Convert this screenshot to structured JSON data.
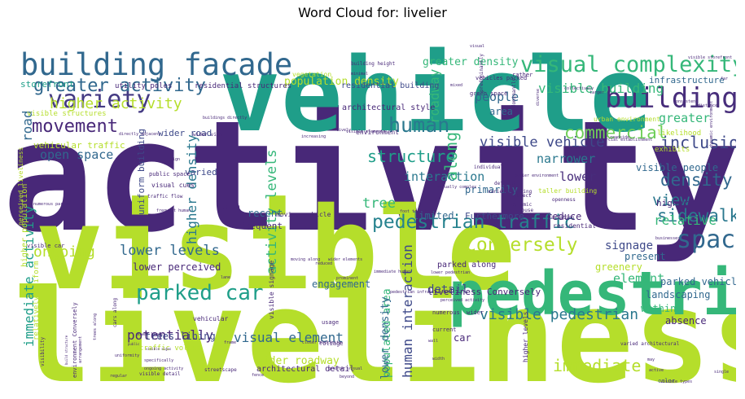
{
  "title": "Word Cloud for: livelier",
  "chart_data": {
    "type": "wordcloud",
    "words": [
      {
        "text": "activity",
        "weight": 100,
        "color": "#482878"
      },
      {
        "text": "liveliness",
        "weight": 88,
        "color": "#b5de2b"
      },
      {
        "text": "visible",
        "weight": 80,
        "color": "#b5de2b"
      },
      {
        "text": "vehicle",
        "weight": 72,
        "color": "#1f9e89"
      },
      {
        "text": "pedestrian",
        "weight": 46,
        "color": "#35b779"
      },
      {
        "text": "building facade",
        "weight": 28,
        "color": "#31688e"
      },
      {
        "text": "variety",
        "weight": 25,
        "color": "#443a83"
      },
      {
        "text": "building",
        "weight": 25,
        "color": "#472d7b"
      },
      {
        "text": "visual complexity",
        "weight": 22,
        "color": "#35b779"
      },
      {
        "text": "space",
        "weight": 21,
        "color": "#31688e"
      },
      {
        "text": "pedestrian traffic",
        "weight": 19,
        "color": "#26828e"
      },
      {
        "text": "parked car",
        "weight": 19,
        "color": "#1f9e89"
      },
      {
        "text": "greater activity",
        "weight": 19,
        "color": "#31688e"
      },
      {
        "text": "human",
        "weight": 19,
        "color": "#2a788e"
      },
      {
        "text": "Conversely",
        "weight": 17,
        "color": "#b5de2b"
      },
      {
        "text": "movement",
        "weight": 17,
        "color": "#482878"
      },
      {
        "text": "density",
        "weight": 16,
        "color": "#31688e"
      },
      {
        "text": "commercial",
        "weight": 16,
        "color": "#6ece58"
      },
      {
        "text": "sidewalk",
        "weight": 16,
        "color": "#2a788e"
      },
      {
        "text": "along",
        "weight": 16,
        "color": "#35b779"
      },
      {
        "text": "structure",
        "weight": 16,
        "color": "#1f9e89"
      },
      {
        "text": "inclusion",
        "weight": 15,
        "color": "#3e4989"
      },
      {
        "text": "visible pedestrian",
        "weight": 15,
        "color": "#2a788e"
      },
      {
        "text": "immediate",
        "weight": 15,
        "color": "#b5de2b"
      },
      {
        "text": "view",
        "weight": 15,
        "color": "#2a788e"
      },
      {
        "text": "higher activity",
        "weight": 14,
        "color": "#b5de2b"
      },
      {
        "text": "ongoing",
        "weight": 14,
        "color": "#b5de2b"
      },
      {
        "text": "visible vehicle",
        "weight": 14,
        "color": "#3e4989"
      },
      {
        "text": "open space",
        "weight": 12,
        "color": "#31688e"
      },
      {
        "text": "activity levels",
        "weight": 13,
        "color": "#35b779"
      },
      {
        "text": "higher density",
        "weight": 13,
        "color": "#2a788e"
      },
      {
        "text": "lower levels",
        "weight": 13,
        "color": "#31688e"
      },
      {
        "text": "visible building",
        "weight": 12,
        "color": "#35b779"
      },
      {
        "text": "roadway",
        "weight": 12,
        "color": "#35b779"
      },
      {
        "text": "people",
        "weight": 12,
        "color": "#31688e"
      },
      {
        "text": "road",
        "weight": 12,
        "color": "#31688e"
      },
      {
        "text": "tree",
        "weight": 12,
        "color": "#35b779"
      },
      {
        "text": "relative",
        "weight": 12,
        "color": "#35b779"
      },
      {
        "text": "greater",
        "weight": 12,
        "color": "#35b779"
      },
      {
        "text": "immediate activity",
        "weight": 12,
        "color": "#1f9e89"
      },
      {
        "text": "potentially",
        "weight": 12,
        "color": "#482878"
      },
      {
        "text": "visual element",
        "weight": 12,
        "color": "#31688e"
      },
      {
        "text": "interaction",
        "weight": 11,
        "color": "#2a788e"
      },
      {
        "text": "human interaction",
        "weight": 11,
        "color": "#3e4989"
      },
      {
        "text": "lower",
        "weight": 11,
        "color": "#472d7b"
      },
      {
        "text": "narrower",
        "weight": 11,
        "color": "#2a788e"
      },
      {
        "text": "signage",
        "weight": 11,
        "color": "#3e4989"
      },
      {
        "text": "element",
        "weight": 11,
        "color": "#35b779"
      },
      {
        "text": "detail",
        "weight": 10,
        "color": "#3e4989"
      },
      {
        "text": "populated area",
        "weight": 10,
        "color": "#35b779"
      },
      {
        "text": "lower density",
        "weight": 10,
        "color": "#31688e"
      },
      {
        "text": "wider roadway",
        "weight": 10,
        "color": "#b5de2b"
      },
      {
        "text": "population density",
        "weight": 10,
        "color": "#b5de2b"
      },
      {
        "text": "greater density",
        "weight": 10,
        "color": "#35b779"
      },
      {
        "text": "infrastructure",
        "weight": 9,
        "color": "#31688e"
      },
      {
        "text": "visible people",
        "weight": 9,
        "color": "#31688e"
      },
      {
        "text": "parked vehicle",
        "weight": 9,
        "color": "#31688e"
      },
      {
        "text": "landscaping",
        "weight": 9,
        "color": "#31688e"
      },
      {
        "text": "primarily",
        "weight": 9,
        "color": "#31688e"
      },
      {
        "text": "limited",
        "weight": 9,
        "color": "#31688e"
      },
      {
        "text": "reduce",
        "weight": 9,
        "color": "#482878"
      },
      {
        "text": "engagement",
        "weight": 9,
        "color": "#31688e"
      },
      {
        "text": "higher",
        "weight": 8,
        "color": "#482878"
      },
      {
        "text": "recent",
        "weight": 8,
        "color": "#31688e"
      },
      {
        "text": "present",
        "weight": 8,
        "color": "#31688e"
      },
      {
        "text": "greenery",
        "weight": 8,
        "color": "#b5de2b"
      },
      {
        "text": "within",
        "weight": 8,
        "color": "#35b779"
      },
      {
        "text": "absence",
        "weight": 8,
        "color": "#482878"
      },
      {
        "text": "area",
        "weight": 8,
        "color": "#31688e"
      },
      {
        "text": "varied",
        "weight": 7,
        "color": "#3e4989"
      },
      {
        "text": "frequent",
        "weight": 7,
        "color": "#482878"
      },
      {
        "text": "car",
        "weight": 8,
        "color": "#482878"
      },
      {
        "text": "lower perceived",
        "weight": 8,
        "color": "#482878"
      },
      {
        "text": "liveliness Conversely",
        "weight": 8,
        "color": "#482878"
      },
      {
        "text": "storefront",
        "weight": 8,
        "color": "#1f9e89"
      },
      {
        "text": "wider road",
        "weight": 7,
        "color": "#3e4989"
      },
      {
        "text": "trees lining",
        "weight": 8,
        "color": "#3e4989"
      },
      {
        "text": "architectural detail",
        "weight": 7,
        "color": "#482878"
      },
      {
        "text": "architectural style",
        "weight": 7,
        "color": "#482878"
      },
      {
        "text": "residential building",
        "weight": 7,
        "color": "#3e4989"
      },
      {
        "text": "residential structures",
        "weight": 6,
        "color": "#482878"
      },
      {
        "text": "utility poles",
        "weight": 6,
        "color": "#482878"
      },
      {
        "text": "vehicular traffic",
        "weight": 7,
        "color": "#b5de2b"
      },
      {
        "text": "visible structures",
        "weight": 6,
        "color": "#b5de2b"
      },
      {
        "text": "uniform building",
        "weight": 7,
        "color": "#3e4989"
      },
      {
        "text": "traffic volume",
        "weight": 6,
        "color": "#b5de2b"
      },
      {
        "text": "vegetation",
        "weight": 5,
        "color": "#b5de2b"
      },
      {
        "text": "environment",
        "weight": 5,
        "color": "#482878"
      },
      {
        "text": "likelihood",
        "weight": 6,
        "color": "#b5de2b"
      },
      {
        "text": "exhibits",
        "weight": 6,
        "color": "#b5de2b"
      },
      {
        "text": "urban environment",
        "weight": 5,
        "color": "#b5de2b"
      },
      {
        "text": "moving vehicle",
        "weight": 5,
        "color": "#482878"
      },
      {
        "text": "taller building",
        "weight": 5,
        "color": "#b5de2b"
      },
      {
        "text": "residential area",
        "weight": 5,
        "color": "#482878"
      },
      {
        "text": "Furthermore",
        "weight": 6,
        "color": "#3e4989"
      },
      {
        "text": "vehicular",
        "weight": 5,
        "color": "#482878"
      },
      {
        "text": "visual cues",
        "weight": 5,
        "color": "#482878"
      },
      {
        "text": "public space",
        "weight": 5,
        "color": "#482878"
      },
      {
        "text": "higher population",
        "weight": 6,
        "color": "#b5de2b"
      },
      {
        "text": "perceived liveliness",
        "weight": 5,
        "color": "#b5de2b"
      },
      {
        "text": "visible car",
        "weight": 5,
        "color": "#482878"
      },
      {
        "text": "relatively uniform",
        "weight": 6,
        "color": "#b5de2b"
      },
      {
        "text": "environment Conversely",
        "weight": 5,
        "color": "#482878"
      },
      {
        "text": "numerous",
        "weight": 5,
        "color": "#482878"
      },
      {
        "text": "wider",
        "weight": 5,
        "color": "#482878"
      },
      {
        "text": "current",
        "weight": 5,
        "color": "#482878"
      },
      {
        "text": "usage",
        "weight": 5,
        "color": "#482878"
      },
      {
        "text": "foliage",
        "weight": 5,
        "color": "#482878"
      },
      {
        "text": "visible signage",
        "weight": 5,
        "color": "#482878"
      },
      {
        "text": "higher levels",
        "weight": 5,
        "color": "#482878"
      },
      {
        "text": "varied architectural",
        "weight": 4,
        "color": "#482878"
      },
      {
        "text": "visible detail",
        "weight": 4,
        "color": "#482878"
      },
      {
        "text": "streetscape",
        "weight": 4,
        "color": "#482878"
      },
      {
        "text": "color",
        "weight": 5,
        "color": "#3e4989"
      },
      {
        "text": "visibility",
        "weight": 5,
        "color": "#482878"
      },
      {
        "text": "predominantly",
        "weight": 4,
        "color": "#482878"
      },
      {
        "text": "green space",
        "weight": 5,
        "color": "#482878"
      },
      {
        "text": "vehicles parked",
        "weight": 5,
        "color": "#482878"
      },
      {
        "text": "building height",
        "weight": 4,
        "color": "#482878"
      },
      {
        "text": "visible storefront",
        "weight": 4,
        "color": "#482878"
      },
      {
        "text": "rather",
        "weight": 5,
        "color": "#482878"
      },
      {
        "text": "visual",
        "weight": 4,
        "color": "#482878"
      },
      {
        "text": "collectively",
        "weight": 4,
        "color": "#482878"
      },
      {
        "text": "larger",
        "weight": 4,
        "color": "#482878"
      },
      {
        "text": "commercial establishment",
        "weight": 4,
        "color": "#482878"
      },
      {
        "text": "distance",
        "weight": 4,
        "color": "#482878"
      },
      {
        "text": "dynamic environment",
        "weight": 4,
        "color": "#482878"
      },
      {
        "text": "consistent",
        "weight": 4,
        "color": "#482878"
      },
      {
        "text": "openness",
        "weight": 4,
        "color": "#482878"
      },
      {
        "text": "variation",
        "weight": 4,
        "color": "#482878"
      },
      {
        "text": "house",
        "weight": 4,
        "color": "#482878"
      },
      {
        "text": "object",
        "weight": 4,
        "color": "#482878"
      },
      {
        "text": "dynamic",
        "weight": 4,
        "color": "#482878"
      },
      {
        "text": "individual",
        "weight": 4,
        "color": "#482878"
      },
      {
        "text": "defined",
        "weight": 4,
        "color": "#482878"
      },
      {
        "text": "varied building",
        "weight": 4,
        "color": "#482878"
      },
      {
        "text": "busier environment",
        "weight": 4,
        "color": "#482878"
      },
      {
        "text": "increasing",
        "weight": 4,
        "color": "#482878"
      },
      {
        "text": "directly adjacent",
        "weight": 4,
        "color": "#482878"
      },
      {
        "text": "numerous parked",
        "weight": 4,
        "color": "#482878"
      },
      {
        "text": "traffic flow",
        "weight": 4,
        "color": "#482878"
      },
      {
        "text": "linked",
        "weight": 4,
        "color": "#482878"
      },
      {
        "text": "cars along",
        "weight": 4,
        "color": "#482878"
      },
      {
        "text": "trees along",
        "weight": 4,
        "color": "#482878"
      },
      {
        "text": "power lines",
        "weight": 4,
        "color": "#482878"
      },
      {
        "text": "regular",
        "weight": 4,
        "color": "#482878"
      },
      {
        "text": "specifically",
        "weight": 4,
        "color": "#482878"
      },
      {
        "text": "ongoing activity",
        "weight": 4,
        "color": "#482878"
      },
      {
        "text": "beyond",
        "weight": 4,
        "color": "#482878"
      },
      {
        "text": "frame",
        "weight": 4,
        "color": "#482878"
      },
      {
        "text": "single",
        "weight": 4,
        "color": "#482878"
      },
      {
        "text": "active",
        "weight": 4,
        "color": "#482878"
      },
      {
        "text": "visible types",
        "weight": 4,
        "color": "#482878"
      },
      {
        "text": "parked along",
        "weight": 5,
        "color": "#482878"
      },
      {
        "text": "pedestrian infrastructure",
        "weight": 4,
        "color": "#482878"
      },
      {
        "text": "perceived activity",
        "weight": 4,
        "color": "#482878"
      },
      {
        "text": "mixed",
        "weight": 4,
        "color": "#482878"
      },
      {
        "text": "minimal",
        "weight": 4,
        "color": "#482878"
      },
      {
        "text": "diverse",
        "weight": 4,
        "color": "#482878"
      },
      {
        "text": "lively",
        "weight": 4,
        "color": "#482878"
      },
      {
        "text": "roadside",
        "weight": 4,
        "color": "#482878"
      },
      {
        "text": "wall",
        "weight": 4,
        "color": "#482878"
      },
      {
        "text": "businesses",
        "weight": 4,
        "color": "#482878"
      },
      {
        "text": "width",
        "weight": 4,
        "color": "#482878"
      },
      {
        "text": "uniformity",
        "weight": 4,
        "color": "#482878"
      },
      {
        "text": "lane",
        "weight": 4,
        "color": "#482878"
      },
      {
        "text": "fence",
        "weight": 4,
        "color": "#482878"
      },
      {
        "text": "sign",
        "weight": 4,
        "color": "#482878"
      },
      {
        "text": "prominent",
        "weight": 4,
        "color": "#482878"
      },
      {
        "text": "reduced",
        "weight": 4,
        "color": "#482878"
      },
      {
        "text": "closer proximity",
        "weight": 4,
        "color": "#482878"
      },
      {
        "text": "immediate human",
        "weight": 4,
        "color": "#482878"
      },
      {
        "text": "lower pedestrian",
        "weight": 4,
        "color": "#482878"
      },
      {
        "text": "moving along",
        "weight": 4,
        "color": "#482878"
      },
      {
        "text": "wider elements",
        "weight": 4,
        "color": "#482878"
      },
      {
        "text": "arrangement",
        "weight": 4,
        "color": "#482878"
      },
      {
        "text": "build structure",
        "weight": 4,
        "color": "#482878"
      },
      {
        "text": "visible signs",
        "weight": 4,
        "color": "#482878"
      },
      {
        "text": "public",
        "weight": 4,
        "color": "#482878"
      },
      {
        "text": "may",
        "weight": 4,
        "color": "#482878"
      },
      {
        "text": "far",
        "weight": 4,
        "color": "#482878"
      },
      {
        "text": "visually complex",
        "weight": 4,
        "color": "#482878"
      },
      {
        "text": "buildings directly",
        "weight": 4,
        "color": "#482878"
      },
      {
        "text": "wider view",
        "weight": 4,
        "color": "#482878"
      },
      {
        "text": "visible elements",
        "weight": 4,
        "color": "#482878"
      },
      {
        "text": "predominantly",
        "weight": 4,
        "color": "#482878"
      },
      {
        "text": "foot traffic",
        "weight": 4,
        "color": "#482878"
      },
      {
        "text": "frequent human",
        "weight": 4,
        "color": "#482878"
      },
      {
        "text": "greater visual",
        "weight": 4,
        "color": "#482878"
      }
    ]
  }
}
